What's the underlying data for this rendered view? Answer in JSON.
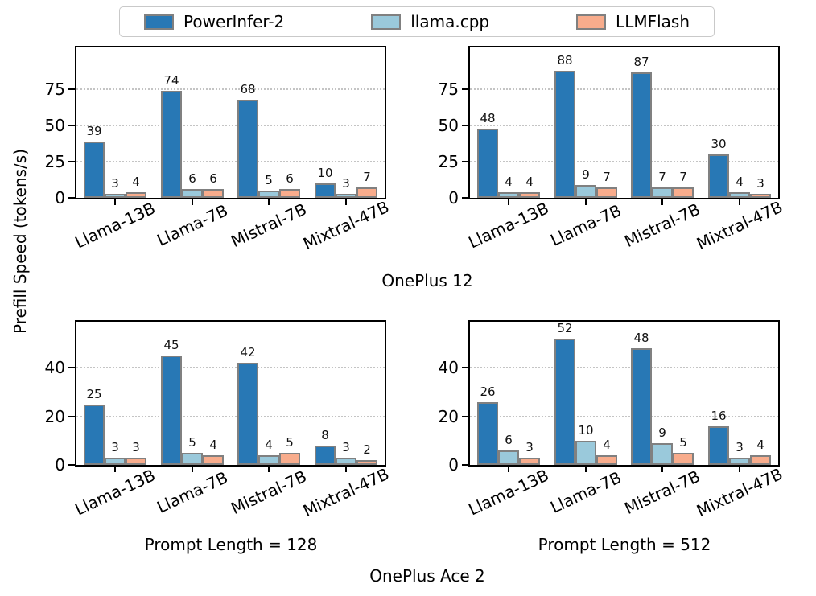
{
  "figure": {
    "ylabel": "Prefill Speed (tokens/s)",
    "row_titles": [
      "OnePlus 12",
      "OnePlus Ace 2"
    ],
    "col_titles": [
      "Prompt Length = 128",
      "Prompt Length = 512"
    ]
  },
  "legend": {
    "items": [
      {
        "label": "PowerInfer-2",
        "color": "#2878B5"
      },
      {
        "label": "llama.cpp",
        "color": "#9AC9DB"
      },
      {
        "label": "LLMFlash",
        "color": "#F8AC8C"
      }
    ]
  },
  "colors": {
    "bar_edge": "#808080",
    "axis": "#000000",
    "grid": "#c4c4c4"
  },
  "chart_data": [
    {
      "type": "bar",
      "device": "OnePlus 12",
      "prompt_length": "128",
      "categories": [
        "Llama-13B",
        "Llama-7B",
        "Mistral-7B",
        "Mixtral-47B"
      ],
      "series": [
        {
          "name": "PowerInfer-2",
          "color": "#2878B5",
          "values": [
            39,
            74,
            68,
            10
          ]
        },
        {
          "name": "llama.cpp",
          "color": "#9AC9DB",
          "values": [
            3,
            6,
            5,
            3
          ]
        },
        {
          "name": "LLMFlash",
          "color": "#F8AC8C",
          "values": [
            4,
            6,
            6,
            7
          ]
        }
      ],
      "yticks": [
        0,
        25,
        50,
        75
      ],
      "ylim": [
        0,
        104
      ],
      "grid": "dotted-horizontal"
    },
    {
      "type": "bar",
      "device": "OnePlus 12",
      "prompt_length": "512",
      "categories": [
        "Llama-13B",
        "Llama-7B",
        "Mistral-7B",
        "Mixtral-47B"
      ],
      "series": [
        {
          "name": "PowerInfer-2",
          "color": "#2878B5",
          "values": [
            48,
            88,
            87,
            30
          ]
        },
        {
          "name": "llama.cpp",
          "color": "#9AC9DB",
          "values": [
            4,
            9,
            7,
            4
          ]
        },
        {
          "name": "LLMFlash",
          "color": "#F8AC8C",
          "values": [
            4,
            7,
            7,
            3
          ]
        }
      ],
      "yticks": [
        0,
        25,
        50,
        75
      ],
      "ylim": [
        0,
        104
      ],
      "grid": "dotted-horizontal"
    },
    {
      "type": "bar",
      "device": "OnePlus Ace 2",
      "prompt_length": "128",
      "categories": [
        "Llama-13B",
        "Llama-7B",
        "Mistral-7B",
        "Mixtral-47B"
      ],
      "series": [
        {
          "name": "PowerInfer-2",
          "color": "#2878B5",
          "values": [
            25,
            45,
            42,
            8
          ]
        },
        {
          "name": "llama.cpp",
          "color": "#9AC9DB",
          "values": [
            3,
            5,
            4,
            3
          ]
        },
        {
          "name": "LLMFlash",
          "color": "#F8AC8C",
          "values": [
            3,
            4,
            5,
            2
          ]
        }
      ],
      "yticks": [
        0,
        20,
        40
      ],
      "ylim": [
        0,
        59
      ],
      "grid": "dotted-horizontal"
    },
    {
      "type": "bar",
      "device": "OnePlus Ace 2",
      "prompt_length": "512",
      "categories": [
        "Llama-13B",
        "Llama-7B",
        "Mistral-7B",
        "Mixtral-47B"
      ],
      "series": [
        {
          "name": "PowerInfer-2",
          "color": "#2878B5",
          "values": [
            26,
            52,
            48,
            16
          ]
        },
        {
          "name": "llama.cpp",
          "color": "#9AC9DB",
          "values": [
            6,
            10,
            9,
            3
          ]
        },
        {
          "name": "LLMFlash",
          "color": "#F8AC8C",
          "values": [
            3,
            4,
            5,
            4
          ]
        }
      ],
      "yticks": [
        0,
        20,
        40
      ],
      "ylim": [
        0,
        59
      ],
      "grid": "dotted-horizontal"
    }
  ]
}
